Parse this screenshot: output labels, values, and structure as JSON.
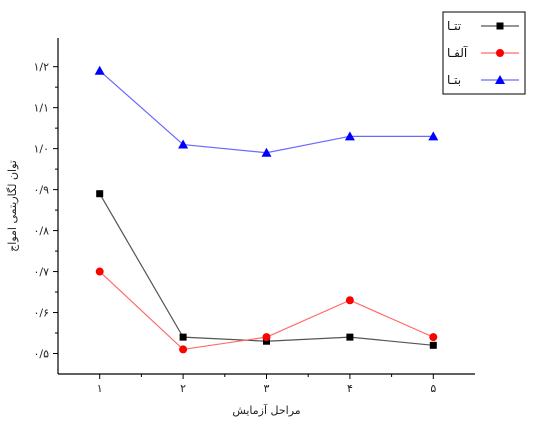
{
  "chart_data": {
    "type": "line",
    "x": [
      1,
      2,
      3,
      4,
      5
    ],
    "x_tick_labels": [
      "۱",
      "۲",
      "۳",
      "۴",
      "۵"
    ],
    "y_tick_values": [
      0.5,
      0.6,
      0.7,
      0.8,
      0.9,
      1.0,
      1.1,
      1.2
    ],
    "y_tick_labels": [
      "۰/۵",
      "۰/۶",
      "۰/۷",
      "۰/۸",
      "۰/۹",
      "۱/۰",
      "۱/۱",
      "۱/۲"
    ],
    "xlabel": "مراحل آزمایش",
    "ylabel": "توان لگاریتمی امواج",
    "xlim": [
      0.5,
      5.5
    ],
    "ylim": [
      0.45,
      1.27
    ],
    "grid": false,
    "legend_position": "top-right",
    "series": [
      {
        "name": "تتـا",
        "marker": "square",
        "color": "#000000",
        "line_color": "#555555",
        "values": [
          0.89,
          0.54,
          0.53,
          0.54,
          0.52
        ]
      },
      {
        "name": "آلفـا",
        "marker": "circle",
        "color": "#ff0000",
        "line_color": "#ff6a6a",
        "values": [
          0.7,
          0.51,
          0.54,
          0.63,
          0.54
        ]
      },
      {
        "name": "بتـا",
        "marker": "triangle",
        "color": "#0000ff",
        "line_color": "#6a6aff",
        "values": [
          1.19,
          1.01,
          0.99,
          1.03,
          1.03
        ]
      }
    ]
  }
}
